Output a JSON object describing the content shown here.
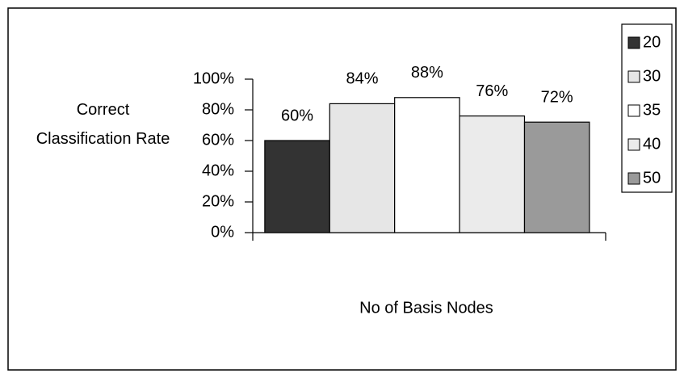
{
  "chart_data": {
    "type": "bar",
    "y_label": "Correct Classification Rate",
    "x_label": "No of Basis Nodes",
    "categories": [
      null
    ],
    "series": [
      {
        "name": "20",
        "color": "#333333",
        "values": [
          60
        ],
        "value_labels": [
          "60%"
        ]
      },
      {
        "name": "30",
        "color": "#e6e6e6",
        "values": [
          84
        ],
        "value_labels": [
          "84%"
        ]
      },
      {
        "name": "35",
        "color": "#ffffff",
        "values": [
          88
        ],
        "value_labels": [
          "88%"
        ]
      },
      {
        "name": "40",
        "color": "#ebebeb",
        "values": [
          76
        ],
        "value_labels": [
          "76%"
        ]
      },
      {
        "name": "50",
        "color": "#9a9a9a",
        "values": [
          72
        ],
        "value_labels": [
          "72%"
        ]
      }
    ],
    "ylim": [
      0,
      100
    ],
    "yticks": [
      {
        "value": 0,
        "label": "0%"
      },
      {
        "value": 20,
        "label": "20%"
      },
      {
        "value": 40,
        "label": "40%"
      },
      {
        "value": 60,
        "label": "60%"
      },
      {
        "value": 80,
        "label": "80%"
      },
      {
        "value": 100,
        "label": "100%"
      }
    ],
    "legend": "right"
  }
}
